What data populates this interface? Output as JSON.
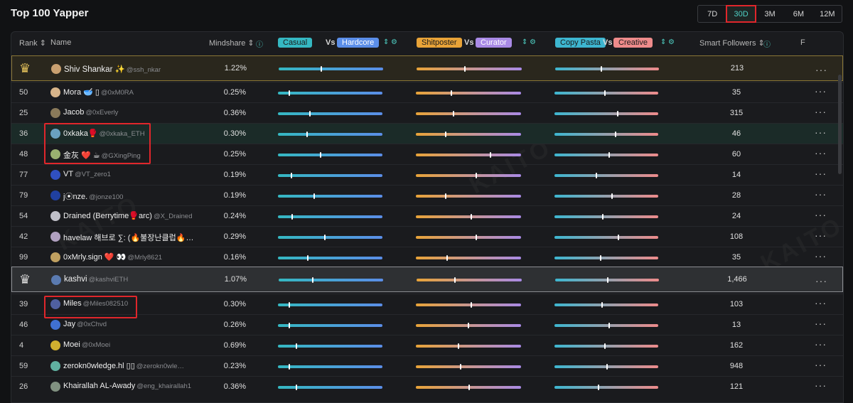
{
  "title": "Top 100 Yapper",
  "periods": [
    {
      "label": "7D",
      "active": false
    },
    {
      "label": "30D",
      "active": true
    },
    {
      "label": "3M",
      "active": false
    },
    {
      "label": "6M",
      "active": false
    },
    {
      "label": "12M",
      "active": false
    }
  ],
  "header": {
    "rank": "Rank ⇕",
    "name": "Name",
    "mindshare": "Mindshare ⇕",
    "casual": "Casual",
    "vs1": "Vs",
    "hardcore": "Hardcore",
    "shitposter": "Shitposter",
    "vs2": "Vs",
    "curator": "Curator",
    "copy_pasta": "Copy Pasta",
    "vs3": "Vs",
    "creative": "Creative",
    "smart_followers": "Smart Followers ⇕",
    "extra": "F"
  },
  "watermark": "KAITO",
  "rows": [
    {
      "rank": "",
      "name": "Shiv Shankar ✨",
      "handle": "@ssh_nkar",
      "mindshare": "1.22%",
      "followers": "213",
      "marks": [
        0.4,
        0.45,
        0.44
      ],
      "style": "top1",
      "avatar_color": "#c9a070"
    },
    {
      "rank": "50",
      "name": "Mora 🥣 ▯",
      "handle": "@0xM0RA",
      "mindshare": "0.25%",
      "followers": "35",
      "marks": [
        0.1,
        0.33,
        0.48
      ],
      "style": "",
      "avatar_color": "#d7b48a"
    },
    {
      "rank": "25",
      "name": "Jacob",
      "handle": "@0xEverly",
      "mindshare": "0.36%",
      "followers": "315",
      "marks": [
        0.3,
        0.35,
        0.6
      ],
      "style": "",
      "avatar_color": "#8a7a5a"
    },
    {
      "rank": "36",
      "name": "0xkaka🥊",
      "handle": "@0xkaka_ETH",
      "mindshare": "0.30%",
      "followers": "46",
      "marks": [
        0.27,
        0.28,
        0.58
      ],
      "style": "hl",
      "avatar_color": "#6aa0c0"
    },
    {
      "rank": "48",
      "name": "金灰 ❤️ ☕",
      "handle": "@GXingPing",
      "mindshare": "0.25%",
      "followers": "60",
      "marks": [
        0.4,
        0.7,
        0.52
      ],
      "style": "",
      "avatar_color": "#9ab070"
    },
    {
      "rank": "77",
      "name": "VT",
      "handle": "@VT_zero1",
      "mindshare": "0.19%",
      "followers": "14",
      "marks": [
        0.12,
        0.57,
        0.4
      ],
      "style": "",
      "avatar_color": "#3050c0"
    },
    {
      "rank": "79",
      "name": "j⦿nze.",
      "handle": "@jonze100",
      "mindshare": "0.19%",
      "followers": "28",
      "marks": [
        0.34,
        0.28,
        0.55
      ],
      "style": "",
      "avatar_color": "#2040a0"
    },
    {
      "rank": "54",
      "name": "Drained (Berrytime🥊arc)",
      "handle": "@X_Drained",
      "mindshare": "0.24%",
      "followers": "24",
      "marks": [
        0.13,
        0.52,
        0.46
      ],
      "style": "",
      "avatar_color": "#c0c0c8"
    },
    {
      "rank": "42",
      "name": "havelaw 해브로 ∑: (🔥불장난클럽🔥…",
      "handle": "",
      "mindshare": "0.29%",
      "followers": "108",
      "marks": [
        0.44,
        0.57,
        0.61
      ],
      "style": "",
      "avatar_color": "#b0a0c0"
    },
    {
      "rank": "99",
      "name": "0xMrly.sign ❤️ 👀",
      "handle": "@Mrly8621",
      "mindshare": "0.16%",
      "followers": "35",
      "marks": [
        0.28,
        0.29,
        0.44
      ],
      "style": "",
      "avatar_color": "#c0a060"
    },
    {
      "rank": "",
      "name": "kashvi",
      "handle": "@kashviETH",
      "mindshare": "1.07%",
      "followers": "1,466",
      "marks": [
        0.32,
        0.36,
        0.5
      ],
      "style": "top2",
      "avatar_color": "#5a7ab0"
    },
    {
      "rank": "39",
      "name": "Miles",
      "handle": "@Miles082510",
      "mindshare": "0.30%",
      "followers": "103",
      "marks": [
        0.1,
        0.52,
        0.45
      ],
      "style": "",
      "avatar_color": "#5060a0"
    },
    {
      "rank": "46",
      "name": "Jay",
      "handle": "@0xChvd",
      "mindshare": "0.26%",
      "followers": "13",
      "marks": [
        0.1,
        0.49,
        0.52
      ],
      "style": "",
      "avatar_color": "#4070d0"
    },
    {
      "rank": "4",
      "name": "Moei",
      "handle": "@0xMoei",
      "mindshare": "0.69%",
      "followers": "162",
      "marks": [
        0.17,
        0.4,
        0.48
      ],
      "style": "",
      "avatar_color": "#d0b030"
    },
    {
      "rank": "59",
      "name": "zerokn0wledge.hl ▯▯",
      "handle": "@zerokn0wle…",
      "mindshare": "0.23%",
      "followers": "948",
      "marks": [
        0.1,
        0.42,
        0.5
      ],
      "style": "",
      "avatar_color": "#60b0a0"
    },
    {
      "rank": "26",
      "name": "Khairallah AL-Awady",
      "handle": "@eng_khairallah1",
      "mindshare": "0.36%",
      "followers": "121",
      "marks": [
        0.17,
        0.5,
        0.42
      ],
      "style": "",
      "avatar_color": "#809080"
    }
  ],
  "colors": {
    "accent": "#4fd1c5",
    "gold_border": "#8a7636",
    "highlight_box": "#e0262b"
  }
}
